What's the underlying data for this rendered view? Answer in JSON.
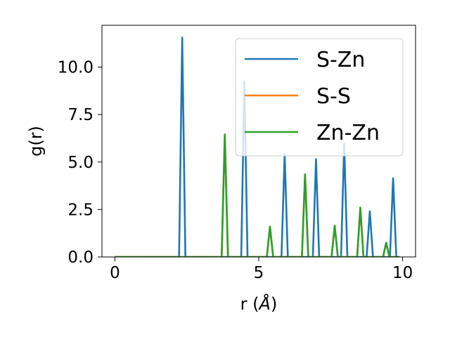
{
  "chart_data": {
    "type": "line",
    "xlabel_base": "r (",
    "xlabel_unit": "Å",
    "xlabel_close": ")",
    "ylabel": "g(r)",
    "xlim": [
      -0.45,
      10.45
    ],
    "ylim": [
      0,
      12.2
    ],
    "xticks": [
      0,
      5,
      10
    ],
    "xtick_labels": [
      "0",
      "5",
      "10"
    ],
    "yticks": [
      0,
      2.5,
      5,
      7.5,
      10
    ],
    "ytick_labels": [
      "0.0",
      "2.5",
      "5.0",
      "7.5",
      "10.0"
    ],
    "grid": false,
    "legend_position": "top-right",
    "r_range": [
      0,
      9.9
    ],
    "peak_halfwidth": 0.11,
    "series": [
      {
        "name": "S-Zn",
        "color": "#1f77b4",
        "peaks": [
          [
            2.34,
            11.55
          ],
          [
            4.5,
            9.25
          ],
          [
            5.9,
            5.4
          ],
          [
            6.99,
            5.15
          ],
          [
            7.97,
            5.95
          ],
          [
            8.86,
            2.4
          ],
          [
            9.67,
            4.15
          ]
        ]
      },
      {
        "name": "S-S",
        "color": "#ff7f0e",
        "peaks": [
          [
            3.82,
            6.45
          ],
          [
            5.39,
            1.6
          ],
          [
            6.61,
            4.35
          ],
          [
            7.64,
            1.65
          ],
          [
            8.53,
            2.6
          ],
          [
            9.43,
            0.75
          ]
        ]
      },
      {
        "name": "Zn-Zn",
        "color": "#2ca02c",
        "peaks": [
          [
            3.82,
            6.45
          ],
          [
            5.39,
            1.6
          ],
          [
            6.61,
            4.35
          ],
          [
            7.64,
            1.65
          ],
          [
            8.53,
            2.6
          ],
          [
            9.43,
            0.75
          ]
        ]
      }
    ]
  }
}
